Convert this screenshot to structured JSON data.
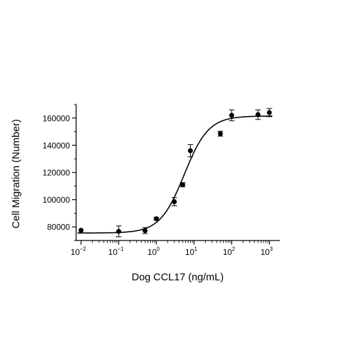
{
  "chart_data": {
    "type": "scatter",
    "xlabel": "Dog CCL17 (ng/mL)",
    "ylabel": "Cell Migration (Number)",
    "x_scale": "log",
    "xlim": [
      0.01,
      1000
    ],
    "ylim": [
      70000,
      170000
    ],
    "x_ticks": [
      {
        "base": "10",
        "exp": "-2",
        "value": 0.01
      },
      {
        "base": "10",
        "exp": "-1",
        "value": 0.1
      },
      {
        "base": "10",
        "exp": "0",
        "value": 1
      },
      {
        "base": "10",
        "exp": "1",
        "value": 10
      },
      {
        "base": "10",
        "exp": "2",
        "value": 100
      },
      {
        "base": "10",
        "exp": "3",
        "value": 1000
      }
    ],
    "y_ticks": [
      80000,
      100000,
      120000,
      140000,
      160000
    ],
    "y_tick_labels": [
      "80000",
      "100000",
      "120000",
      "140000",
      "160000"
    ],
    "grid": false,
    "series": [
      {
        "points": [
          {
            "x": 0.01,
            "y": 77500,
            "err": 0
          },
          {
            "x": 0.1,
            "y": 76700,
            "err": 4000
          },
          {
            "x": 0.5,
            "y": 77300,
            "err": 2200
          },
          {
            "x": 1,
            "y": 86000,
            "err": 1000
          },
          {
            "x": 3,
            "y": 98500,
            "err": 3000
          },
          {
            "x": 5,
            "y": 111000,
            "err": 1500
          },
          {
            "x": 8,
            "y": 136000,
            "err": 4500
          },
          {
            "x": 50,
            "y": 148500,
            "err": 1800
          },
          {
            "x": 100,
            "y": 162000,
            "err": 4000
          },
          {
            "x": 500,
            "y": 162500,
            "err": 3500
          },
          {
            "x": 1000,
            "y": 164000,
            "err": 3000
          }
        ],
        "fit": {
          "bottom": 75500,
          "top": 161500,
          "ec50": 5.5,
          "hill": 1.35
        }
      }
    ]
  }
}
